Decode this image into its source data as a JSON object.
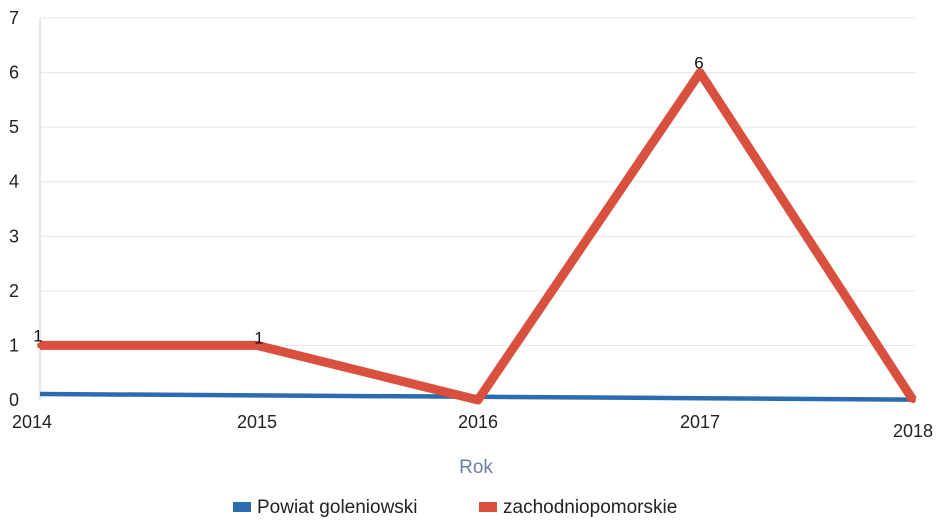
{
  "chart_data": {
    "type": "line",
    "title": "",
    "xlabel": "Rok",
    "ylabel": "",
    "categories": [
      "2014",
      "2015",
      "2016",
      "2017",
      "2018"
    ],
    "ylim": [
      0,
      7
    ],
    "yticks": [
      0,
      1,
      2,
      3,
      4,
      5,
      6,
      7
    ],
    "grid": true,
    "legend_position": "bottom",
    "series": [
      {
        "name": "Powiat goleniowski",
        "color": "#2b6cb0",
        "values": [
          0,
          0,
          0,
          0,
          0
        ],
        "data_labels": [
          "",
          "",
          "",
          "",
          ""
        ]
      },
      {
        "name": "zachodniopomorskie",
        "color": "#d9503f",
        "values": [
          1,
          1,
          0,
          6,
          0
        ],
        "data_labels": [
          "1",
          "1",
          "",
          "6",
          ""
        ]
      }
    ]
  }
}
